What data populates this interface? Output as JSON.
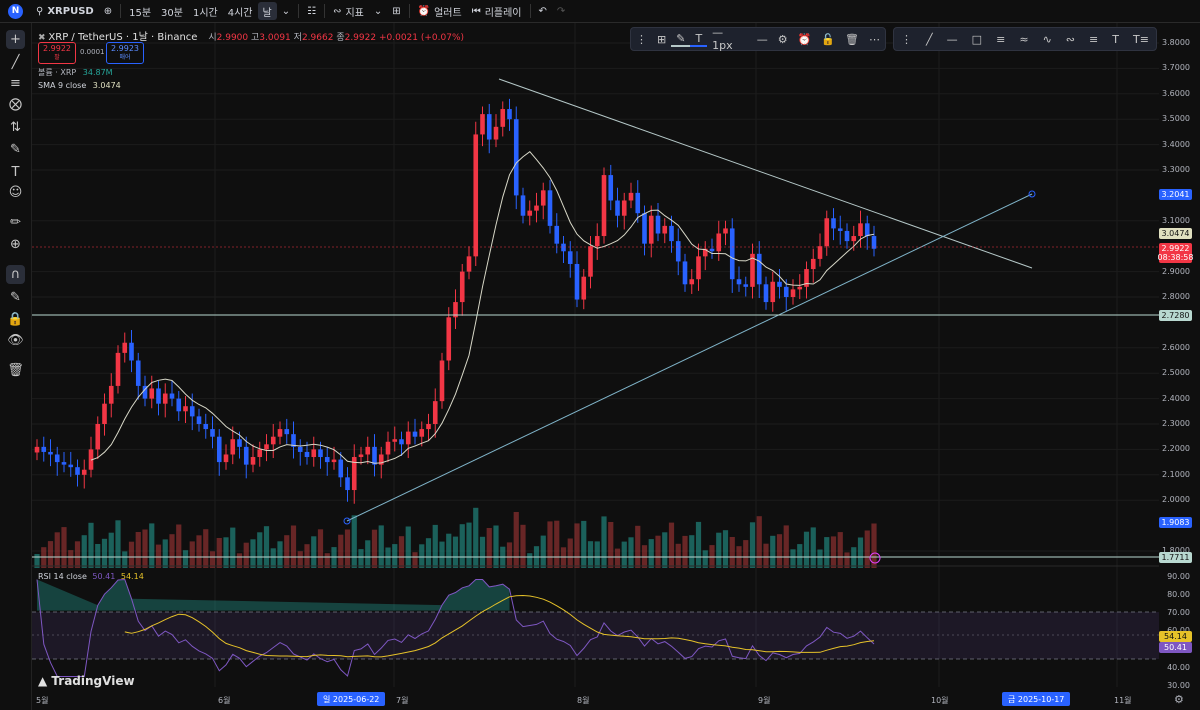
{
  "topbar": {
    "logo": "N",
    "symbol": "XRPUSD",
    "intervals": [
      "15분",
      "30분",
      "1시간",
      "4시간",
      "날"
    ],
    "selected_interval": "날",
    "indicators_label": "지표",
    "alert_label": "얼러트",
    "replay_label": "리플레이"
  },
  "legend": {
    "pair": "XRP / TetherUS · 1날 · Binance",
    "o_label": "시",
    "o": "2.9900",
    "h_label": "고",
    "h": "3.0091",
    "l_label": "저",
    "l": "2.9662",
    "c_label": "종",
    "c": "2.9922",
    "change": "+0.0021 (+0.07%)",
    "bid": "2.9922",
    "bid_label": "팔",
    "spread": "0.0001",
    "ask": "2.9923",
    "ask_label": "매어",
    "volume_label": "볼륨 · XRP",
    "volume_value": "34.87M",
    "sma_label": "SMA 9 close",
    "sma_value": "3.0474",
    "rsi_label": "RSI 14 close",
    "rsi_value": "50.41",
    "rsi_ma": "54.14"
  },
  "drawing_toolbar": {
    "width_label": "1px"
  },
  "price_axis": {
    "ticks": [
      "3.8000",
      "3.7000",
      "3.6000",
      "3.5000",
      "3.4000",
      "3.3000",
      "3.1000",
      "2.9000",
      "2.8000",
      "2.6000",
      "2.5000",
      "2.4000",
      "2.3000",
      "2.2000",
      "2.1000",
      "2.0000",
      "1.8000"
    ],
    "markers": {
      "alert_level": "3.2041",
      "sma": "3.0474",
      "last_price": "2.9922",
      "countdown": "08:38:58",
      "horizontal_line": "2.7280",
      "lower_level": "1.9083",
      "bottom_line": "1.7711"
    }
  },
  "rsi_axis": {
    "ticks": [
      "90.00",
      "80.00",
      "70.00",
      "60.00",
      "40.00",
      "30.00"
    ],
    "rsi_ma": "54.14",
    "rsi": "50.41"
  },
  "time_axis": {
    "labels": [
      "5월",
      "6월",
      "7월",
      "8월",
      "9월",
      "10월",
      "11월"
    ],
    "selected_left": "일 2025-06-22",
    "selected_right": "금 2025-10-17"
  },
  "branding": "TradingView",
  "colors": {
    "up": "#f23645",
    "down": "#2962ff",
    "sma": "#d8d8c8",
    "rsi_line": "#7e57c2",
    "rsi_ma": "#e6c229",
    "trendline": "#b5c8c8"
  },
  "chart_data": {
    "type": "candlestick",
    "title": "XRP / TetherUS · 1날 · Binance",
    "ylim": [
      1.75,
      3.82
    ],
    "note_axis_labels": "prices in USDT",
    "closes_daily_approx": [
      2.21,
      2.19,
      2.18,
      2.15,
      2.14,
      2.13,
      2.1,
      2.12,
      2.2,
      2.3,
      2.38,
      2.45,
      2.58,
      2.62,
      2.55,
      2.45,
      2.4,
      2.44,
      2.38,
      2.42,
      2.4,
      2.35,
      2.37,
      2.33,
      2.3,
      2.28,
      2.25,
      2.15,
      2.18,
      2.24,
      2.21,
      2.14,
      2.17,
      2.2,
      2.22,
      2.25,
      2.28,
      2.26,
      2.21,
      2.19,
      2.17,
      2.2,
      2.17,
      2.15,
      2.16,
      2.09,
      2.04,
      2.17,
      2.18,
      2.21,
      2.14,
      2.18,
      2.23,
      2.24,
      2.22,
      2.27,
      2.25,
      2.28,
      2.3,
      2.39,
      2.55,
      2.72,
      2.78,
      2.9,
      2.96,
      3.44,
      3.52,
      3.42,
      3.47,
      3.54,
      3.5,
      3.2,
      3.12,
      3.14,
      3.16,
      3.22,
      3.08,
      3.01,
      2.98,
      2.93,
      2.79,
      2.88,
      3.0,
      3.04,
      3.28,
      3.18,
      3.12,
      3.18,
      3.21,
      3.13,
      3.01,
      3.12,
      3.05,
      3.08,
      3.02,
      2.94,
      2.85,
      2.87,
      2.96,
      2.99,
      2.98,
      3.05,
      3.07,
      2.87,
      2.85,
      2.84,
      2.97,
      2.85,
      2.78,
      2.86,
      2.84,
      2.8,
      2.83,
      2.84,
      2.91,
      2.95,
      3.0,
      3.11,
      3.07,
      3.06,
      3.02,
      3.04,
      3.09,
      3.04,
      2.99
    ]
  }
}
